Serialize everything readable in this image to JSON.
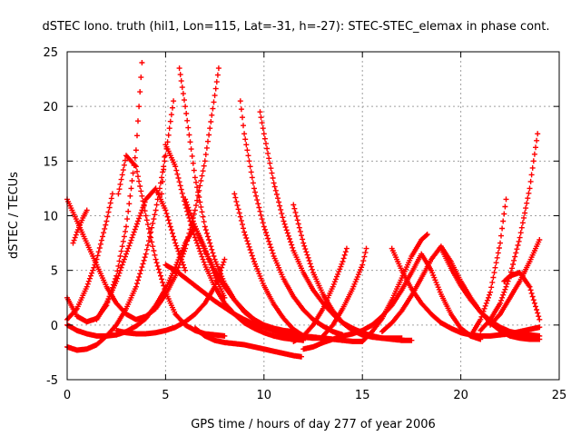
{
  "chart_data": {
    "type": "scatter",
    "title": "dSTEC Iono. truth (hil1, Lon=115, Lat=-31, h=-27): STEC-STEC_elemax in phase cont.",
    "xlabel": "GPS time / hours of day 277 of year 2006",
    "ylabel": "dSTEC  / TECUs",
    "xlim": [
      0,
      25
    ],
    "ylim": [
      -5,
      25
    ],
    "xticks": [
      0,
      5,
      10,
      15,
      20,
      25
    ],
    "yticks": [
      -5,
      0,
      5,
      10,
      15,
      20,
      25
    ],
    "xtick_labels": [
      "0",
      "5",
      "10",
      "15",
      "20",
      "25"
    ],
    "ytick_labels": [
      "-5",
      "0",
      "5",
      "10",
      "15",
      "20",
      "25"
    ],
    "grid": true,
    "marker": "plus",
    "color": "#ff0000",
    "series": [
      {
        "x": [
          0.0,
          0.5,
          1.0,
          1.5,
          2.0,
          2.5,
          3.0,
          3.5,
          3.8
        ],
        "y": [
          2.5,
          0.8,
          0.3,
          0.6,
          1.8,
          4.5,
          9.0,
          16.0,
          24.0
        ]
      },
      {
        "x": [
          2.6,
          3.0,
          3.5,
          4.0,
          4.5,
          5.0,
          5.5,
          6.0,
          6.5,
          7.0,
          7.5,
          8.0
        ],
        "y": [
          12.0,
          15.5,
          14.5,
          10.0,
          6.0,
          3.0,
          1.0,
          0.0,
          -0.5,
          -0.8,
          -0.9,
          -1.0
        ]
      },
      {
        "x": [
          0.0,
          0.5,
          1.0,
          1.5,
          2.0,
          2.5,
          3.0,
          3.5,
          4.0,
          4.5,
          5.0,
          5.4
        ],
        "y": [
          -2.0,
          -2.3,
          -2.2,
          -1.8,
          -1.0,
          0.0,
          1.5,
          3.5,
          6.5,
          10.5,
          15.5,
          20.5
        ]
      },
      {
        "x": [
          5.7,
          6.0,
          6.5,
          7.0,
          7.5,
          8.0,
          8.5,
          9.0,
          9.5,
          10.0,
          10.5,
          11.0,
          11.5
        ],
        "y": [
          23.5,
          20.0,
          13.5,
          9.0,
          6.0,
          3.8,
          2.3,
          1.2,
          0.5,
          0.0,
          -0.3,
          -0.5,
          -0.6
        ]
      },
      {
        "x": [
          0.0,
          0.5,
          1.0,
          1.5,
          2.0,
          2.5,
          3.0,
          3.5,
          4.0,
          4.5,
          5.0,
          5.5,
          6.0,
          6.5,
          7.0,
          7.5,
          7.7
        ],
        "y": [
          11.5,
          9.5,
          7.5,
          5.5,
          3.5,
          2.0,
          1.0,
          0.5,
          0.8,
          1.5,
          2.8,
          4.5,
          7.0,
          10.5,
          15.0,
          21.0,
          23.5
        ]
      },
      {
        "x": [
          4.8,
          5.0,
          5.5,
          6.0,
          6.5,
          7.0,
          7.5,
          8.0,
          8.5,
          9.0,
          9.5,
          10.0,
          10.5,
          11.0,
          11.5,
          12.0
        ],
        "y": [
          12.0,
          16.5,
          14.5,
          11.0,
          8.0,
          5.5,
          3.5,
          2.0,
          1.0,
          0.2,
          -0.3,
          -0.7,
          -1.0,
          -1.2,
          -1.3,
          -1.4
        ]
      },
      {
        "x": [
          6.0,
          6.5,
          7.0,
          7.5,
          8.0,
          8.5,
          9.0,
          9.5,
          10.0,
          10.5,
          11.0,
          11.5,
          12.0,
          12.5,
          13.0,
          13.5,
          14.0
        ],
        "y": [
          11.5,
          9.0,
          6.8,
          5.0,
          3.5,
          2.3,
          1.3,
          0.5,
          -0.1,
          -0.5,
          -0.8,
          -1.0,
          -1.1,
          -1.2,
          -1.2,
          -1.3,
          -1.3
        ]
      },
      {
        "x": [
          5.0,
          5.5,
          6.0,
          6.5,
          7.0,
          7.5,
          8.0,
          8.5,
          9.0,
          9.5,
          10.0,
          10.5,
          11.0,
          11.5,
          12.0,
          12.5,
          13.0,
          13.5,
          14.0,
          14.5,
          15.0
        ],
        "y": [
          5.5,
          5.0,
          4.3,
          3.6,
          2.9,
          2.2,
          1.6,
          1.0,
          0.5,
          0.1,
          -0.2,
          -0.5,
          -0.7,
          -0.9,
          -1.0,
          -1.1,
          -1.2,
          -1.3,
          -1.4,
          -1.5,
          -1.5
        ]
      },
      {
        "x": [
          8.8,
          9.0,
          9.5,
          10.0,
          10.5,
          11.0,
          11.5,
          12.0,
          12.5,
          13.0,
          13.5,
          14.0
        ],
        "y": [
          20.5,
          17.5,
          12.5,
          9.0,
          6.3,
          4.2,
          2.6,
          1.4,
          0.5,
          -0.1,
          -0.6,
          -0.9
        ]
      },
      {
        "x": [
          9.8,
          10.0,
          10.5,
          11.0,
          11.5,
          12.0,
          12.5,
          13.0,
          13.5,
          14.0,
          14.5,
          15.0,
          15.5,
          16.0,
          16.5,
          17.0,
          17.5
        ],
        "y": [
          19.5,
          17.5,
          13.0,
          9.5,
          6.8,
          4.8,
          3.2,
          2.0,
          1.0,
          0.2,
          -0.3,
          -0.7,
          -1.0,
          -1.2,
          -1.3,
          -1.4,
          -1.4
        ]
      },
      {
        "x": [
          8.5,
          9.0,
          9.5,
          10.0,
          10.5,
          11.0,
          11.5,
          12.0
        ],
        "y": [
          12.0,
          8.5,
          5.8,
          3.6,
          1.9,
          0.6,
          -0.4,
          -1.0
        ]
      },
      {
        "x": [
          6.5,
          7.0,
          7.5,
          8.0,
          8.5,
          9.0,
          9.5,
          10.0,
          10.5,
          11.0,
          11.5,
          11.9
        ],
        "y": [
          -0.3,
          -1.0,
          -1.4,
          -1.6,
          -1.7,
          -1.8,
          -2.0,
          -2.2,
          -2.4,
          -2.6,
          -2.8,
          -2.9
        ]
      },
      {
        "x": [
          11.5,
          12.0,
          12.5,
          13.0,
          13.5,
          14.0,
          14.5,
          15.0,
          15.5,
          16.0,
          16.5,
          17.0
        ],
        "y": [
          11.0,
          7.5,
          4.8,
          2.8,
          1.3,
          0.2,
          -0.5,
          -0.9,
          -1.1,
          -1.2,
          -1.2,
          -1.2
        ]
      },
      {
        "x": [
          12.0,
          12.5,
          13.0,
          13.5,
          14.0,
          14.5,
          15.0,
          15.5,
          16.0,
          16.5,
          17.0,
          17.5,
          18.0,
          18.5,
          19.0,
          19.5,
          20.0,
          20.5,
          21.0
        ],
        "y": [
          -2.2,
          -2.0,
          -1.6,
          -1.3,
          -1.0,
          -0.8,
          -0.5,
          0.0,
          0.8,
          1.8,
          3.2,
          4.8,
          6.5,
          5.0,
          2.8,
          1.0,
          -0.3,
          -1.0,
          -1.3
        ]
      },
      {
        "x": [
          11.5,
          12.0,
          12.5,
          13.0,
          13.5,
          14.0,
          14.2
        ],
        "y": [
          -1.5,
          -1.0,
          0.0,
          1.5,
          3.5,
          5.8,
          7.0
        ]
      },
      {
        "x": [
          13.0,
          13.5,
          14.0,
          14.5,
          15.0,
          15.2
        ],
        "y": [
          -1.0,
          0.0,
          1.5,
          3.3,
          5.5,
          7.0
        ]
      },
      {
        "x": [
          15.0,
          15.5,
          16.0,
          16.5,
          17.0,
          17.5,
          18.0,
          18.3
        ],
        "y": [
          -1.5,
          -0.6,
          0.6,
          2.3,
          4.3,
          6.3,
          7.8,
          8.3
        ]
      },
      {
        "x": [
          16.0,
          16.5,
          17.0,
          17.5,
          18.0,
          18.5,
          19.0,
          19.5,
          20.0,
          20.5,
          21.0,
          21.5,
          22.0,
          22.5,
          23.0,
          23.5,
          24.0
        ],
        "y": [
          -0.6,
          0.2,
          1.3,
          2.7,
          4.3,
          6.0,
          7.2,
          5.8,
          4.0,
          2.5,
          1.2,
          0.2,
          -0.5,
          -1.0,
          -1.2,
          -1.3,
          -1.3
        ]
      },
      {
        "x": [
          16.5,
          17.0,
          17.5,
          18.0,
          18.5,
          19.0,
          19.5,
          20.0,
          20.5,
          21.0,
          21.5,
          22.0,
          22.5,
          23.0,
          23.5,
          24.0
        ],
        "y": [
          7.0,
          5.0,
          3.3,
          2.0,
          1.0,
          0.2,
          -0.3,
          -0.7,
          -0.9,
          -1.0,
          -1.0,
          -0.9,
          -0.8,
          -0.6,
          -0.4,
          -0.2
        ]
      },
      {
        "x": [
          19.0,
          19.5,
          20.0,
          20.5,
          21.0,
          21.5,
          22.0,
          22.5,
          23.0,
          23.5,
          24.0
        ],
        "y": [
          7.0,
          5.2,
          3.6,
          2.3,
          1.2,
          0.4,
          -0.2,
          -0.6,
          -0.8,
          -0.9,
          -1.0
        ]
      },
      {
        "x": [
          20.5,
          21.0,
          21.5,
          22.0,
          22.3
        ],
        "y": [
          -1.0,
          0.5,
          3.0,
          7.5,
          11.5
        ]
      },
      {
        "x": [
          21.0,
          21.5,
          22.0,
          22.5,
          23.0,
          23.5,
          23.9
        ],
        "y": [
          -0.5,
          0.5,
          2.0,
          4.5,
          8.0,
          12.5,
          17.5
        ]
      },
      {
        "x": [
          21.5,
          22.0,
          22.5,
          23.0,
          23.5,
          24.0
        ],
        "y": [
          0.0,
          1.0,
          2.5,
          4.0,
          5.8,
          7.8
        ]
      },
      {
        "x": [
          22.2,
          22.5,
          23.0,
          23.5,
          24.0
        ],
        "y": [
          4.0,
          4.5,
          4.8,
          3.5,
          0.5
        ]
      },
      {
        "x": [
          0.0,
          0.5,
          1.0,
          1.5,
          2.0,
          2.5,
          3.0,
          3.5,
          4.0,
          4.5,
          5.0,
          5.5,
          6.0,
          6.5,
          7.0,
          7.5,
          8.0
        ],
        "y": [
          0.0,
          -0.5,
          -0.8,
          -1.0,
          -1.0,
          -0.9,
          -0.6,
          -0.1,
          0.6,
          1.8,
          3.3,
          5.3,
          7.5,
          9.0,
          7.0,
          4.5,
          2.5
        ]
      },
      {
        "x": [
          0.3,
          0.5,
          0.8,
          1.0
        ],
        "y": [
          7.5,
          8.5,
          9.8,
          10.5
        ]
      },
      {
        "x": [
          0.0,
          0.5,
          1.0,
          1.5,
          2.0,
          2.3
        ],
        "y": [
          0.5,
          1.5,
          3.5,
          6.0,
          9.5,
          12.0
        ]
      },
      {
        "x": [
          1.5,
          2.0,
          2.5,
          3.0,
          3.5,
          4.0,
          4.5,
          5.0,
          5.5,
          6.0
        ],
        "y": [
          0.5,
          2.0,
          4.0,
          6.5,
          9.0,
          11.5,
          12.5,
          10.5,
          7.5,
          5.0
        ]
      },
      {
        "x": [
          2.5,
          3.0,
          3.5,
          4.0,
          4.5,
          5.0,
          5.5,
          6.0,
          6.5,
          7.0,
          7.5,
          8.0
        ],
        "y": [
          -0.5,
          -0.7,
          -0.8,
          -0.8,
          -0.7,
          -0.5,
          -0.2,
          0.3,
          1.0,
          2.0,
          3.5,
          6.0
        ]
      }
    ]
  }
}
